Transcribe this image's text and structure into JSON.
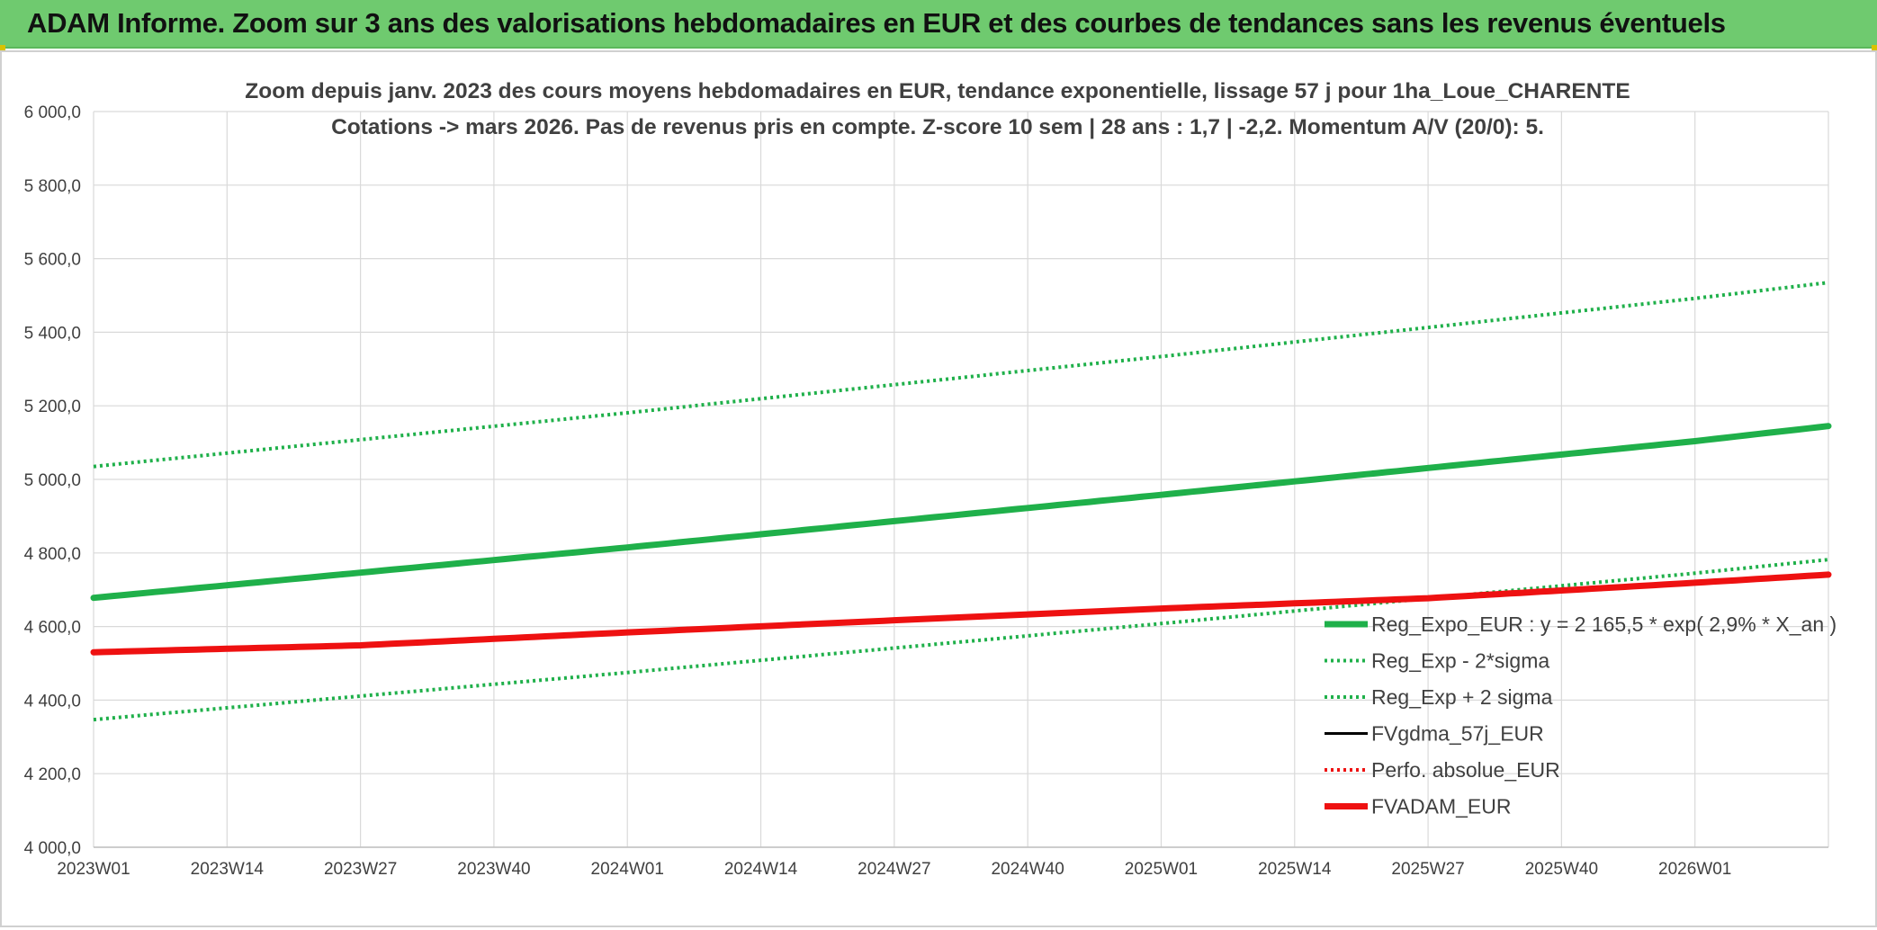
{
  "banner": {
    "title": "ADAM Informe. Zoom sur 3 ans des valorisations hebdomadaires en EUR et des courbes de tendances sans les revenus éventuels"
  },
  "colors": {
    "banner_bg": "#6fca6f",
    "green": "#1fb04a",
    "red": "#ee1111",
    "black": "#000000",
    "grid": "#d9d9d9"
  },
  "chart_data": {
    "type": "line",
    "title": "Zoom depuis janv. 2023 des cours moyens hebdomadaires en EUR, tendance exponentielle, lissage 57 j pour 1ha_Loue_CHARENTE",
    "subtitle": "Cotations -> mars 2026. Pas de revenus pris en compte. Z-score 10 sem | 28 ans : 1,7 | -2,2. Momentum A/V (20/0): 5.",
    "xlabel": "",
    "ylabel": "",
    "x_tick_labels": [
      "2023W01",
      "2023W14",
      "2023W27",
      "2023W40",
      "2024W01",
      "2024W14",
      "2024W27",
      "2024W40",
      "2025W01",
      "2025W14",
      "2025W27",
      "2025W40",
      "2026W01"
    ],
    "x_range_weeks": [
      0,
      169
    ],
    "y_tick_labels": [
      "4 000,0",
      "4 200,0",
      "4 400,0",
      "4 600,0",
      "4 800,0",
      "5 000,0",
      "5 200,0",
      "5 400,0",
      "5 600,0",
      "5 800,0",
      "6 000,0"
    ],
    "ylim": [
      4000,
      6000
    ],
    "grid": true,
    "legend_position": "bottom-right inside plot",
    "series": [
      {
        "name": "Reg_Expo_EUR : y = 2 165,5 * exp( 2,9% *  X_an )",
        "style": "solid-thick",
        "color": "#1fb04a",
        "x_weeks": [
          0,
          52,
          104,
          156,
          169
        ],
        "y": [
          4678,
          4815,
          4958,
          5104,
          5145
        ]
      },
      {
        "name": "Reg_Exp - 2*sigma",
        "style": "dotted",
        "color": "#1fb04a",
        "x_weeks": [
          0,
          52,
          104,
          156,
          169
        ],
        "y": [
          4347,
          4475,
          4608,
          4745,
          4782
        ]
      },
      {
        "name": "Reg_Exp + 2 sigma",
        "style": "dotted",
        "color": "#1fb04a",
        "x_weeks": [
          0,
          52,
          104,
          156,
          169
        ],
        "y": [
          5035,
          5181,
          5334,
          5492,
          5535
        ]
      },
      {
        "name": "FVgdma_57j_EUR",
        "style": "solid",
        "color": "#000000",
        "x_weeks": [
          0,
          26,
          52,
          78,
          104,
          130,
          156,
          169
        ],
        "y": [
          4532,
          4550,
          4585,
          4618,
          4650,
          4678,
          4720,
          4742
        ]
      },
      {
        "name": "Perfo. absolue_EUR",
        "style": "dotted",
        "color": "#ee1111",
        "x_weeks": [
          0,
          26,
          52,
          78,
          104,
          130,
          156,
          169
        ],
        "y": [
          4532,
          4550,
          4585,
          4618,
          4650,
          4678,
          4720,
          4742
        ]
      },
      {
        "name": "FVADAM_EUR",
        "style": "solid-thick",
        "color": "#ee1111",
        "x_weeks": [
          0,
          26,
          52,
          78,
          104,
          130,
          156,
          169
        ],
        "y": [
          4530,
          4549,
          4584,
          4617,
          4649,
          4677,
          4719,
          4741
        ]
      }
    ]
  }
}
